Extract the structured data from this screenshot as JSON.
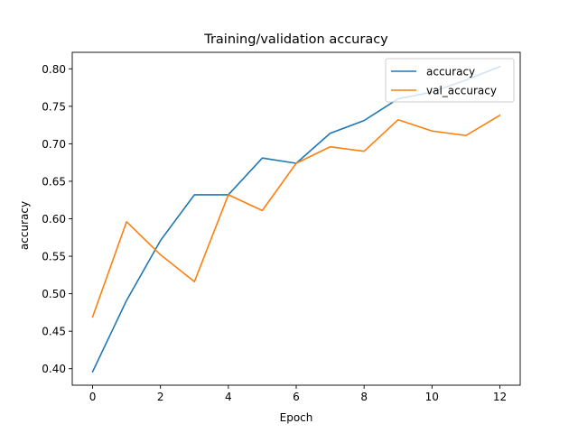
{
  "chart_data": {
    "type": "line",
    "title": "Training/validation accuracy",
    "xlabel": "Epoch",
    "ylabel": "accuracy",
    "x": [
      0,
      1,
      2,
      3,
      4,
      5,
      6,
      7,
      8,
      9,
      10,
      11,
      12
    ],
    "xlim": [
      -0.6,
      12.6
    ],
    "ylim": [
      0.378,
      0.822
    ],
    "x_ticks": [
      "0",
      "2",
      "4",
      "6",
      "8",
      "10",
      "12"
    ],
    "y_ticks": [
      "0.40",
      "0.45",
      "0.50",
      "0.55",
      "0.60",
      "0.65",
      "0.70",
      "0.75",
      "0.80"
    ],
    "grid": false,
    "legend_position": "top-right",
    "series": [
      {
        "name": "accuracy",
        "color": "#1f77b4",
        "values": [
          0.396,
          0.491,
          0.571,
          0.632,
          0.632,
          0.681,
          0.674,
          0.714,
          0.731,
          0.76,
          0.769,
          0.785,
          0.803
        ]
      },
      {
        "name": "val_accuracy",
        "color": "#ff7f0e",
        "values": [
          0.469,
          0.596,
          0.552,
          0.516,
          0.632,
          0.611,
          0.674,
          0.696,
          0.69,
          0.732,
          0.717,
          0.711,
          0.738
        ]
      }
    ]
  }
}
